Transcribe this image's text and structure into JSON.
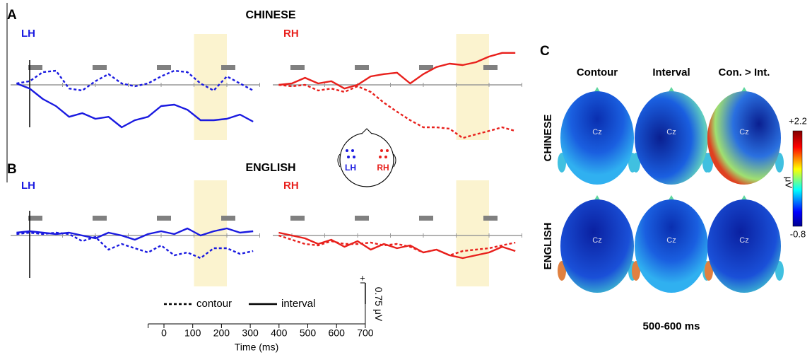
{
  "panels": [
    {
      "letter": "A",
      "title": "CHINESE"
    },
    {
      "letter": "B",
      "title": "ENGLISH"
    },
    {
      "letter": "C"
    }
  ],
  "chart_data": [
    {
      "type": "line",
      "title": "LH",
      "color": "#1a1ae0",
      "window": [
        500,
        600
      ],
      "x": [
        -40,
        0,
        40,
        80,
        120,
        160,
        200,
        240,
        280,
        320,
        360,
        400,
        440,
        480,
        520,
        560,
        600,
        640,
        680
      ],
      "series": [
        {
          "name": "contour",
          "style": "dotted",
          "values": [
            0.05,
            0.13,
            0.45,
            0.5,
            -0.13,
            -0.2,
            0.13,
            0.38,
            0.05,
            -0.05,
            0.05,
            0.3,
            0.5,
            0.45,
            0.05,
            -0.2,
            0.3,
            0.05,
            -0.2
          ]
        },
        {
          "name": "interval",
          "style": "solid",
          "values": [
            0.05,
            -0.13,
            -0.5,
            -0.75,
            -1.13,
            -1,
            -1.2,
            -1.13,
            -1.5,
            -1.25,
            -1.13,
            -0.75,
            -0.7,
            -0.88,
            -1.25,
            -1.25,
            -1.2,
            -1.05,
            -1.3
          ]
        }
      ]
    },
    {
      "type": "line",
      "title": "RH",
      "color": "#e8201c",
      "window": [
        500,
        600
      ],
      "x": [
        -40,
        0,
        40,
        80,
        120,
        160,
        200,
        240,
        280,
        320,
        360,
        400,
        440,
        480,
        520,
        560,
        600,
        640,
        680
      ],
      "series": [
        {
          "name": "contour",
          "style": "dotted",
          "values": [
            0,
            -0.05,
            0,
            -0.2,
            -0.13,
            -0.25,
            -0.05,
            -0.25,
            -0.63,
            -0.95,
            -1.25,
            -1.5,
            -1.5,
            -1.55,
            -1.88,
            -1.75,
            -1.63,
            -1.5,
            -1.63
          ]
        },
        {
          "name": "interval",
          "style": "solid",
          "values": [
            0,
            0.05,
            0.25,
            0.05,
            0.13,
            -0.13,
            0,
            0.3,
            0.38,
            0.43,
            0.05,
            0.38,
            0.63,
            0.75,
            0.7,
            0.8,
            1,
            1.13,
            1.13
          ]
        }
      ]
    },
    {
      "type": "line",
      "title": "LH",
      "color": "#1a1ae0",
      "window": [
        500,
        600
      ],
      "x": [
        -40,
        0,
        40,
        80,
        120,
        160,
        200,
        240,
        280,
        320,
        360,
        400,
        440,
        480,
        520,
        560,
        600,
        640,
        680
      ],
      "series": [
        {
          "name": "contour",
          "style": "dotted",
          "values": [
            0.05,
            0.1,
            0.05,
            0.1,
            0.05,
            -0.2,
            -0.05,
            -0.5,
            -0.3,
            -0.45,
            -0.6,
            -0.35,
            -0.7,
            -0.6,
            -0.8,
            -0.45,
            -0.45,
            -0.65,
            -0.55
          ]
        },
        {
          "name": "interval",
          "style": "solid",
          "values": [
            0.1,
            0.15,
            0.1,
            0.05,
            0.1,
            0,
            -0.1,
            0.1,
            0,
            -0.15,
            0.05,
            0.15,
            0.05,
            0.25,
            0,
            0.15,
            0.25,
            0.1,
            0.15
          ]
        }
      ]
    },
    {
      "type": "line",
      "title": "RH",
      "color": "#e8201c",
      "window": [
        500,
        600
      ],
      "x": [
        -40,
        0,
        40,
        80,
        120,
        160,
        200,
        240,
        280,
        320,
        360,
        400,
        440,
        480,
        520,
        560,
        600,
        640,
        680
      ],
      "series": [
        {
          "name": "contour",
          "style": "dotted",
          "values": [
            0,
            -0.15,
            -0.3,
            -0.35,
            -0.2,
            -0.3,
            -0.3,
            -0.25,
            -0.35,
            -0.3,
            -0.4,
            -0.6,
            -0.5,
            -0.7,
            -0.55,
            -0.5,
            -0.45,
            -0.35,
            -0.25
          ]
        },
        {
          "name": "interval",
          "style": "solid",
          "values": [
            0.1,
            0,
            -0.1,
            -0.3,
            -0.15,
            -0.4,
            -0.2,
            -0.5,
            -0.3,
            -0.45,
            -0.35,
            -0.6,
            -0.5,
            -0.7,
            -0.8,
            -0.7,
            -0.6,
            -0.4,
            -0.55
          ]
        }
      ]
    }
  ],
  "head_inset": {
    "lh": "LH",
    "rh": "RH"
  },
  "scale": {
    "time_label": "Time (ms)",
    "xlim": [
      -55,
      700
    ],
    "xticks": [
      0,
      100,
      200,
      300,
      400,
      500,
      600,
      700
    ],
    "amplitude": {
      "value": 0.75,
      "label": "0.75 μV"
    },
    "sign": "+"
  },
  "topo": {
    "columns": [
      "Contour",
      "Interval",
      "Con. > Int."
    ],
    "rows": [
      "CHINESE",
      "ENGLISH"
    ],
    "electrode": "Cz",
    "window_label": "500-600 ms",
    "colorbar": {
      "max": {
        "value": 2.2,
        "label": "+2.2"
      },
      "min": {
        "value": -0.8,
        "label": "-0.8"
      },
      "unit": "μV"
    }
  }
}
